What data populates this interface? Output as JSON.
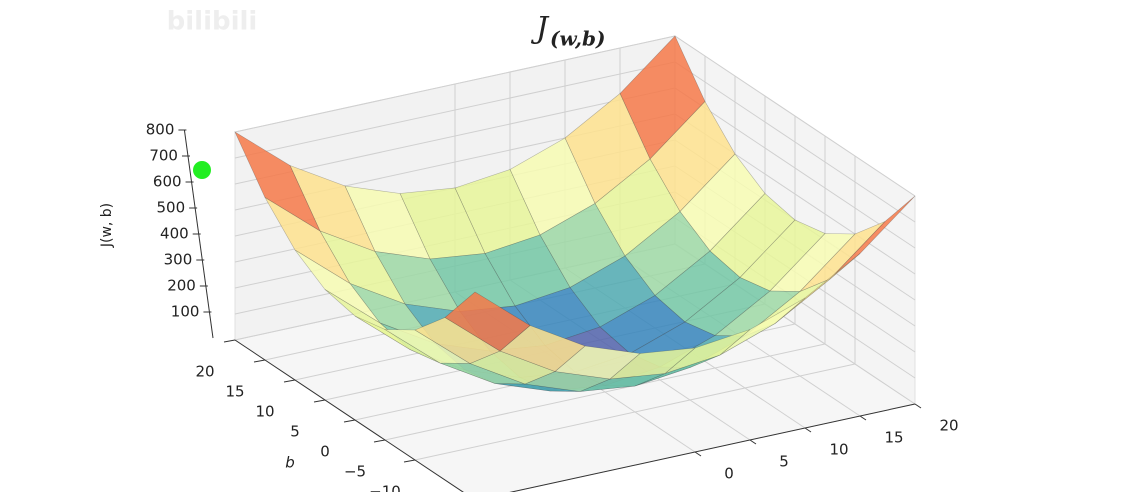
{
  "watermark": "bilibili",
  "chart_data": {
    "type": "surface",
    "title": "J",
    "title_subscript": "(w,b)",
    "zlabel": "J(w, b)",
    "ylabel": "b",
    "colormap": "Spectral_r",
    "grid": true,
    "x": [
      -20,
      -15,
      -10,
      -5,
      0,
      5,
      10,
      15,
      20
    ],
    "y": [
      -20,
      -15,
      -10,
      -5,
      0,
      5,
      10,
      15,
      20
    ],
    "z": [
      [
        800,
        625,
        500,
        425,
        400,
        425,
        500,
        625,
        800
      ],
      [
        625,
        450,
        325,
        250,
        225,
        250,
        325,
        450,
        625
      ],
      [
        500,
        325,
        200,
        125,
        100,
        125,
        200,
        325,
        500
      ],
      [
        425,
        250,
        125,
        50,
        25,
        50,
        125,
        250,
        425
      ],
      [
        400,
        225,
        100,
        25,
        0,
        25,
        100,
        225,
        400
      ],
      [
        425,
        250,
        125,
        50,
        25,
        50,
        125,
        250,
        425
      ],
      [
        500,
        325,
        200,
        125,
        100,
        125,
        200,
        325,
        500
      ],
      [
        625,
        450,
        325,
        250,
        225,
        250,
        325,
        450,
        625
      ],
      [
        800,
        625,
        500,
        425,
        400,
        425,
        500,
        625,
        800
      ]
    ],
    "xlim": [
      -20,
      20
    ],
    "ylim": [
      -20,
      20
    ],
    "zlim": [
      0,
      800
    ],
    "xticks": [
      0,
      5,
      10,
      15,
      20
    ],
    "yticks": [
      20,
      15,
      10,
      5,
      0,
      {
        "value": -5,
        "label": "−5"
      },
      {
        "value": -10,
        "label": "−10"
      }
    ],
    "zticks": [
      100,
      200,
      300,
      400,
      500,
      600,
      700,
      800
    ]
  }
}
